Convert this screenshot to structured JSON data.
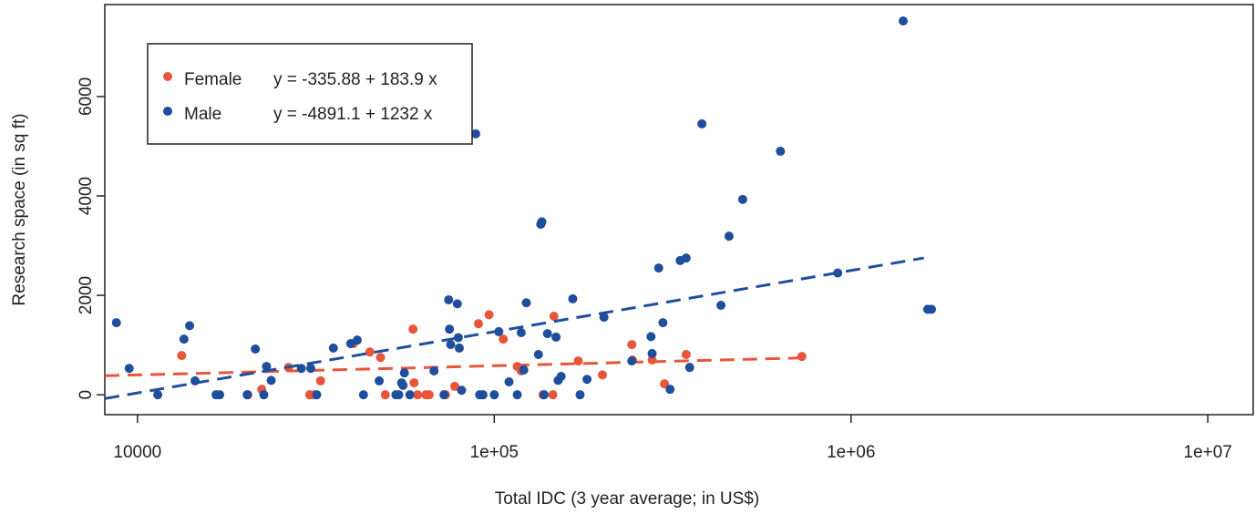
{
  "chart_data": {
    "type": "scatter",
    "x_label": "Total IDC (3 year average; in US$)",
    "y_label": "Research space (in sq ft)",
    "x_log": true,
    "xlim": [
      8100,
      13400000
    ],
    "ylim": [
      -400,
      7850
    ],
    "xticks": [
      10000,
      {
        "value": 100000,
        "label": "1e+05"
      },
      {
        "value": 1000000,
        "label": "1e+06"
      },
      {
        "value": 10000000,
        "label": "1e+07"
      }
    ],
    "yticks": [
      0,
      2000,
      4000,
      6000
    ],
    "legend": "top-left",
    "series": [
      {
        "name": "Female",
        "color": "#e8553a",
        "fit_label": "y = -335.88 + 183.9 x",
        "fit_x": [
          8100,
          720000
        ],
        "fit_y": [
          383,
          741
        ],
        "x": [
          13300,
          20400,
          22300,
          26500,
          30400,
          31200,
          32600,
          40300,
          44800,
          48000,
          49500,
          59200,
          59600,
          61000,
          64300,
          65700,
          73000,
          77500,
          90300,
          96700,
          106000,
          116000,
          119000,
          137000,
          146000,
          147000,
          172000,
          201000,
          243000,
          244000,
          277000,
          300000,
          345000,
          728000
        ],
        "y": [
          790,
          0,
          110,
          550,
          0,
          0,
          280,
          1030,
          860,
          750,
          0,
          1320,
          240,
          0,
          0,
          0,
          0,
          170,
          1430,
          1610,
          1120,
          570,
          480,
          0,
          0,
          1580,
          680,
          400,
          1010,
          700,
          700,
          220,
          810,
          770
        ]
      },
      {
        "name": "Male",
        "color": "#1f4e9c",
        "fit_label": "y = -4891.1 + 1232 x",
        "fit_x": [
          8100,
          1600000
        ],
        "fit_y": [
          -76,
          2752
        ],
        "x": [
          8730,
          9480,
          11400,
          13500,
          14000,
          14500,
          16600,
          17000,
          20300,
          21400,
          22600,
          23000,
          23700,
          28800,
          30600,
          31800,
          35400,
          39600,
          41300,
          43000,
          47600,
          53000,
          54000,
          55000,
          55500,
          56000,
          58000,
          67800,
          72300,
          74500,
          74900,
          75500,
          78800,
          79300,
          79800,
          81000,
          88700,
          91000,
          93000,
          100000,
          103000,
          110000,
          116000,
          119000,
          121000,
          123000,
          133000,
          135000,
          136000,
          138000,
          141000,
          149000,
          151000,
          154000,
          166000,
          174000,
          182000,
          203000,
          243000,
          275000,
          277000,
          289000,
          297000,
          311000,
          332000,
          345000,
          353000,
          382000,
          432000,
          455000,
          497000,
          634000,
          918000,
          1400000,
          1640000,
          1680000
        ],
        "y": [
          1450,
          530,
          0,
          1120,
          1390,
          280,
          0,
          0,
          0,
          920,
          0,
          570,
          290,
          530,
          530,
          0,
          940,
          1030,
          1100,
          0,
          280,
          0,
          0,
          240,
          190,
          440,
          0,
          480,
          0,
          1910,
          1320,
          1010,
          1830,
          1150,
          940,
          90,
          5250,
          0,
          0,
          0,
          1270,
          260,
          0,
          1250,
          500,
          1850,
          810,
          3430,
          3480,
          0,
          1230,
          1160,
          290,
          370,
          1930,
          0,
          310,
          1560,
          680,
          1170,
          830,
          2550,
          1450,
          110,
          2700,
          2750,
          550,
          5450,
          1800,
          3190,
          3930,
          4900,
          2450,
          7520,
          1720,
          1720
        ]
      }
    ]
  }
}
